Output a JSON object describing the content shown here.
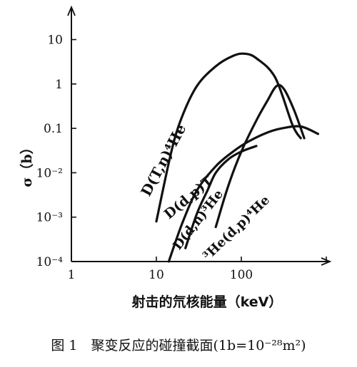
{
  "chart_data": {
    "type": "line",
    "title": "",
    "xlabel": "射击的氘核能量（keV）",
    "ylabel": "σ（b）",
    "xscale": "log",
    "yscale": "log",
    "xlim": [
      1,
      1000
    ],
    "ylim": [
      0.0001,
      50
    ],
    "x_ticks": [
      "1",
      "10",
      "100"
    ],
    "y_ticks": [
      "10",
      "1",
      "0.1",
      "10⁻²",
      "10⁻³",
      "10⁻⁴"
    ],
    "grid": false,
    "series": [
      {
        "name": "D(T,n)⁴He",
        "x": [
          10,
          15,
          20,
          30,
          50,
          80,
          110,
          150,
          250,
          400,
          500
        ],
        "y": [
          0.0008,
          0.03,
          0.18,
          0.9,
          2.5,
          4.3,
          4.8,
          3.8,
          1.4,
          0.12,
          0.06
        ]
      },
      {
        "name": "D(d,p)T",
        "x": [
          14,
          20,
          30,
          50,
          80,
          120,
          200,
          300,
          500,
          800
        ],
        "y": [
          0.0001,
          0.0007,
          0.004,
          0.014,
          0.03,
          0.05,
          0.08,
          0.1,
          0.11,
          0.075
        ]
      },
      {
        "name": "D(d,n)³He",
        "x": [
          22,
          30,
          40,
          50,
          70,
          100,
          150
        ],
        "y": [
          0.0002,
          0.0012,
          0.004,
          0.01,
          0.02,
          0.03,
          0.04
        ]
      },
      {
        "name": "³He(d,p)⁴He",
        "x": [
          50,
          70,
          100,
          150,
          200,
          260,
          320,
          420,
          550
        ],
        "y": [
          0.0006,
          0.005,
          0.03,
          0.15,
          0.4,
          0.9,
          0.75,
          0.25,
          0.06
        ]
      }
    ],
    "curve_labels": [
      {
        "text": "D(T,n)⁴He",
        "series": 0
      },
      {
        "text": "D(d,p)T",
        "series": 1
      },
      {
        "text": "D(d,n)³He",
        "series": 2
      },
      {
        "text": "³He(d,p)⁴He",
        "series": 3
      }
    ]
  },
  "caption": "图 1　聚变反应的碰撞截面(1b=10⁻²⁸m²)"
}
